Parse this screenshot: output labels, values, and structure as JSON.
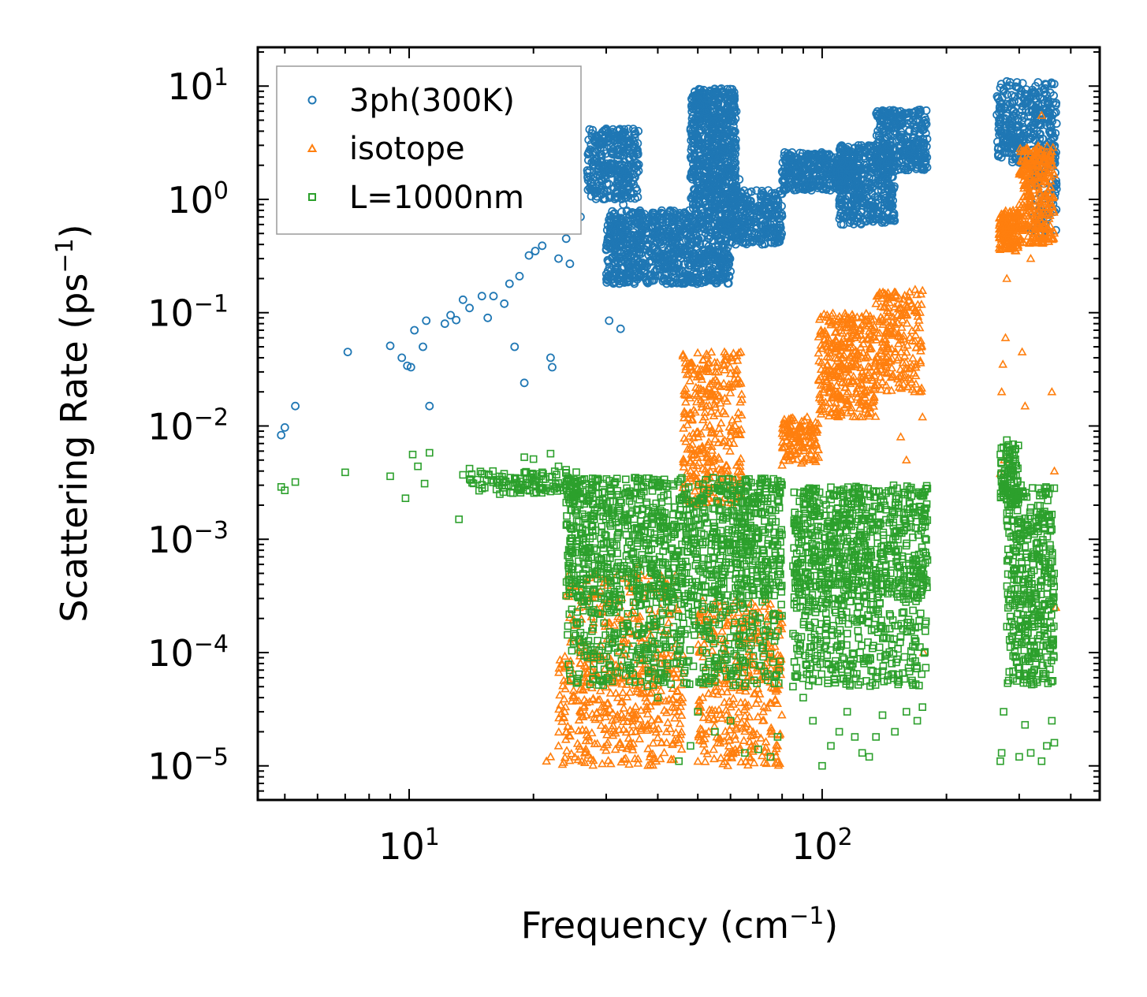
{
  "chart_data": {
    "type": "scatter",
    "xscale": "log",
    "yscale": "log",
    "xlim": [
      4.3,
      470
    ],
    "ylim": [
      5e-06,
      22
    ],
    "xlabel": {
      "text": "Frequency (cm",
      "sup": "−1",
      "close": ")"
    },
    "ylabel": {
      "text": "Scattering Rate (ps",
      "sup": "−1",
      "close": ")"
    },
    "xticks": [
      {
        "value": 10,
        "base": "10",
        "exp": "1"
      },
      {
        "value": 100,
        "base": "10",
        "exp": "2"
      }
    ],
    "yticks": [
      {
        "value": 10,
        "base": "10",
        "exp": "1"
      },
      {
        "value": 1,
        "base": "10",
        "exp": "0"
      },
      {
        "value": 0.1,
        "base": "10",
        "exp": "−1"
      },
      {
        "value": 0.01,
        "base": "10",
        "exp": "−2"
      },
      {
        "value": 0.001,
        "base": "10",
        "exp": "−3"
      },
      {
        "value": 0.0001,
        "base": "10",
        "exp": "−4"
      },
      {
        "value": 1e-05,
        "base": "10",
        "exp": "−5"
      }
    ],
    "legend_position": "top-left",
    "series": [
      {
        "name": "3ph(300K)",
        "marker": "circle",
        "color": "#1f77b4",
        "points": [
          [
            4.9,
            0.0083
          ],
          [
            5.0,
            0.0097
          ],
          [
            5.3,
            0.015
          ],
          [
            7.1,
            0.045
          ],
          [
            9.0,
            0.051
          ],
          [
            9.6,
            0.04
          ],
          [
            9.9,
            0.034
          ],
          [
            10.1,
            0.033
          ],
          [
            10.3,
            0.07
          ],
          [
            10.8,
            0.05
          ],
          [
            11.0,
            0.085
          ],
          [
            11.2,
            0.015
          ],
          [
            12.2,
            0.08
          ],
          [
            12.6,
            0.095
          ],
          [
            13.0,
            0.086
          ],
          [
            13.5,
            0.13
          ],
          [
            14.0,
            0.11
          ],
          [
            15.0,
            0.14
          ],
          [
            15.5,
            0.09
          ],
          [
            16.0,
            0.14
          ],
          [
            17.0,
            0.12
          ],
          [
            17.5,
            0.18
          ],
          [
            18.0,
            0.05
          ],
          [
            18.5,
            0.21
          ],
          [
            19.0,
            0.024
          ],
          [
            19.5,
            0.32
          ],
          [
            20.2,
            0.35
          ],
          [
            21.0,
            0.39
          ],
          [
            22.0,
            0.04
          ],
          [
            22.2,
            0.033
          ],
          [
            22.5,
            0.55
          ],
          [
            23.0,
            0.3
          ],
          [
            24.0,
            0.45
          ],
          [
            24.5,
            0.27
          ],
          [
            25.0,
            0.6
          ],
          [
            26.0,
            0.7
          ],
          [
            27,
            1.8
          ],
          [
            28,
            2.2
          ],
          [
            29,
            2.5
          ],
          [
            30,
            4.2
          ],
          [
            31,
            2.6
          ],
          [
            32,
            1.5
          ],
          [
            33,
            0.9
          ],
          [
            34,
            0.6
          ],
          [
            30.5,
            0.085
          ],
          [
            32.5,
            0.072
          ],
          [
            35,
            0.35
          ],
          [
            36,
            0.28
          ],
          [
            38,
            0.4
          ],
          [
            40,
            0.45
          ],
          [
            42,
            0.5
          ],
          [
            45,
            0.55
          ],
          [
            48,
            0.7
          ],
          [
            50,
            1.2
          ],
          [
            52,
            2.0
          ],
          [
            54,
            3.5
          ],
          [
            55,
            5.0
          ],
          [
            56,
            7.5
          ],
          [
            57,
            9.5
          ],
          [
            58,
            5.0
          ],
          [
            60,
            2.5
          ],
          [
            63,
            1.5
          ],
          [
            66,
            1.0
          ],
          [
            70,
            0.8
          ],
          [
            75,
            0.6
          ],
          [
            78,
            0.5
          ],
          [
            82,
            1.6
          ],
          [
            86,
            2.0
          ],
          [
            90,
            1.8
          ],
          [
            95,
            2.2
          ],
          [
            100,
            2.4
          ],
          [
            104,
            1.5
          ],
          [
            108,
            1.8
          ],
          [
            112,
            1.2
          ],
          [
            118,
            0.9
          ],
          [
            124,
            0.7
          ],
          [
            128,
            0.65
          ],
          [
            133,
            1.5
          ],
          [
            138,
            2.0
          ],
          [
            142,
            3.5
          ],
          [
            146,
            5.5
          ],
          [
            150,
            6.0
          ],
          [
            155,
            3.0
          ],
          [
            160,
            2.5
          ],
          [
            166,
            2.8
          ],
          [
            172,
            2.5
          ],
          [
            178,
            2.2
          ],
          [
            270,
            5.0
          ],
          [
            275,
            9.0
          ],
          [
            280,
            11.0
          ],
          [
            285,
            7.0
          ],
          [
            290,
            5.5
          ],
          [
            300,
            4.5
          ],
          [
            310,
            8.5
          ],
          [
            320,
            3.5
          ],
          [
            330,
            2.5
          ],
          [
            340,
            0.5
          ],
          [
            350,
            5.2
          ],
          [
            360,
            2.5
          ],
          [
            365,
            2.2
          ]
        ],
        "clusters": [
          [
            27,
            36,
            1.0,
            4.2,
            320
          ],
          [
            30,
            60,
            0.18,
            0.8,
            900
          ],
          [
            48,
            62,
            0.8,
            9.5,
            650
          ],
          [
            60,
            80,
            0.4,
            1.2,
            280
          ],
          [
            80,
            120,
            1.2,
            2.6,
            340
          ],
          [
            110,
            150,
            0.6,
            3.0,
            400
          ],
          [
            135,
            180,
            1.8,
            6.2,
            300
          ],
          [
            265,
            370,
            2.0,
            11.0,
            320
          ],
          [
            320,
            370,
            0.5,
            5.0,
            90
          ]
        ]
      },
      {
        "name": "isotope",
        "marker": "triangle",
        "color": "#ff7f0e",
        "points": [
          [
            21.5,
            1.1e-05
          ],
          [
            22,
            1.2e-05
          ],
          [
            23,
            1.5e-05
          ],
          [
            24,
            2e-05
          ],
          [
            25,
            4e-05
          ],
          [
            26,
            8e-05
          ],
          [
            28,
            0.0001
          ],
          [
            30,
            3e-05
          ],
          [
            32,
            4e-05
          ],
          [
            34,
            0.00012
          ],
          [
            36,
            0.0006
          ],
          [
            38,
            0.0004
          ],
          [
            40,
            0.0001
          ],
          [
            42,
            2e-05
          ],
          [
            44,
            3e-05
          ],
          [
            46,
            0.0025
          ],
          [
            48,
            0.004
          ],
          [
            50,
            0.006
          ],
          [
            52,
            0.012
          ],
          [
            54,
            0.02
          ],
          [
            56,
            0.03
          ],
          [
            58,
            0.045
          ],
          [
            60,
            0.04
          ],
          [
            62,
            0.0035
          ],
          [
            64,
            0.0002
          ],
          [
            66,
            5e-05
          ],
          [
            68,
            2e-05
          ],
          [
            72,
            3e-05
          ],
          [
            75,
            2e-05
          ],
          [
            78,
            1.5e-05
          ],
          [
            80,
            0.0045
          ],
          [
            84,
            0.006
          ],
          [
            88,
            0.009
          ],
          [
            92,
            0.012
          ],
          [
            96,
            0.005
          ],
          [
            100,
            0.015
          ],
          [
            105,
            0.03
          ],
          [
            110,
            0.05
          ],
          [
            115,
            0.08
          ],
          [
            120,
            0.06
          ],
          [
            125,
            0.03
          ],
          [
            130,
            0.08
          ],
          [
            135,
            0.12
          ],
          [
            140,
            0.05
          ],
          [
            145,
            0.1
          ],
          [
            150,
            0.045
          ],
          [
            155,
            0.008
          ],
          [
            160,
            0.005
          ],
          [
            165,
            0.12
          ],
          [
            168,
            0.16
          ],
          [
            170,
            0.1
          ],
          [
            172,
            0.02
          ],
          [
            175,
            0.012
          ],
          [
            176,
            0.0001
          ],
          [
            272,
            0.02
          ],
          [
            274,
            0.035
          ],
          [
            276,
            0.005
          ],
          [
            278,
            0.06
          ],
          [
            280,
            0.2
          ],
          [
            285,
            0.4
          ],
          [
            290,
            0.8
          ],
          [
            300,
            0.9
          ],
          [
            305,
            0.045
          ],
          [
            310,
            0.015
          ],
          [
            315,
            0.6
          ],
          [
            320,
            0.3
          ],
          [
            330,
            2.0
          ],
          [
            340,
            5.5
          ],
          [
            350,
            0.9
          ],
          [
            355,
            0.45
          ],
          [
            360,
            0.02
          ],
          [
            365,
            0.004
          ],
          [
            368,
            0.00025
          ],
          [
            270,
            0.0038
          ]
        ],
        "clusters": [
          [
            23,
            46,
            1e-05,
            0.0001,
            380
          ],
          [
            24,
            45,
            0.0001,
            0.0005,
            140
          ],
          [
            46,
            64,
            0.002,
            0.045,
            320
          ],
          [
            50,
            80,
            1e-05,
            0.0003,
            360
          ],
          [
            80,
            98,
            0.0045,
            0.012,
            130
          ],
          [
            98,
            135,
            0.012,
            0.1,
            340
          ],
          [
            135,
            175,
            0.02,
            0.16,
            200
          ],
          [
            268,
            300,
            0.35,
            0.8,
            150
          ],
          [
            300,
            365,
            0.4,
            3.0,
            300
          ]
        ]
      },
      {
        "name": "L=1000nm",
        "marker": "square",
        "color": "#2ca02c",
        "points": [
          [
            4.9,
            0.0029
          ],
          [
            5.0,
            0.0027
          ],
          [
            5.3,
            0.0032
          ],
          [
            7.0,
            0.0039
          ],
          [
            9.0,
            0.0036
          ],
          [
            9.8,
            0.0023
          ],
          [
            10.2,
            0.0056
          ],
          [
            10.5,
            0.0044
          ],
          [
            10.9,
            0.0031
          ],
          [
            11.2,
            0.0058
          ],
          [
            13.2,
            0.0015
          ],
          [
            13.5,
            0.0037
          ],
          [
            14.0,
            0.0042
          ],
          [
            15,
            0.0038
          ],
          [
            16,
            0.0033
          ],
          [
            17,
            0.0032
          ],
          [
            18,
            0.0034
          ],
          [
            19,
            0.0053
          ],
          [
            20,
            0.0051
          ],
          [
            21,
            0.0039
          ],
          [
            22,
            0.0057
          ],
          [
            23,
            0.0044
          ],
          [
            24,
            0.0041
          ],
          [
            25,
            0.00012
          ],
          [
            26,
            0.00015
          ],
          [
            28,
            7e-05
          ],
          [
            30,
            9.25e-05
          ],
          [
            32,
            0.0001
          ],
          [
            35,
            8e-05
          ],
          [
            38,
            6e-05
          ],
          [
            40,
            4e-05
          ],
          [
            45,
            1.1e-05
          ],
          [
            48,
            1.5e-05
          ],
          [
            50,
            3e-05
          ],
          [
            55,
            2e-05
          ],
          [
            60,
            2.5e-05
          ],
          [
            65,
            1.3e-05
          ],
          [
            70,
            1.4e-05
          ],
          [
            75,
            1.2e-05
          ],
          [
            78,
            1.8e-05
          ],
          [
            85,
            5e-05
          ],
          [
            90,
            4e-05
          ],
          [
            95,
            2.5e-05
          ],
          [
            100,
            1e-05
          ],
          [
            105,
            1.5e-05
          ],
          [
            110,
            2e-05
          ],
          [
            115,
            3e-05
          ],
          [
            120,
            1.8e-05
          ],
          [
            125,
            1.3e-05
          ],
          [
            130,
            1.2e-05
          ],
          [
            135,
            1.8e-05
          ],
          [
            140,
            2.8e-05
          ],
          [
            150,
            2e-05
          ],
          [
            160,
            3e-05
          ],
          [
            170,
            2.5e-05
          ],
          [
            175,
            3.3e-05
          ],
          [
            270,
            1.1e-05
          ],
          [
            272,
            1.3e-05
          ],
          [
            275,
            3e-05
          ],
          [
            280,
            0.0075
          ],
          [
            285,
            0.006
          ],
          [
            290,
            0.004
          ],
          [
            300,
            1.2e-05
          ],
          [
            310,
            2.3e-05
          ],
          [
            320,
            1.3e-05
          ],
          [
            340,
            1.1e-05
          ],
          [
            350,
            1.5e-05
          ],
          [
            360,
            2.5e-05
          ],
          [
            365,
            1.6e-05
          ]
        ],
        "clusters": [
          [
            14,
            26,
            0.0025,
            0.004,
            120
          ],
          [
            24,
            80,
            0.0003,
            0.0035,
            1100
          ],
          [
            24,
            80,
            5e-05,
            0.0003,
            420
          ],
          [
            85,
            180,
            0.0003,
            0.003,
            700
          ],
          [
            85,
            180,
            5e-05,
            0.0003,
            300
          ],
          [
            270,
            300,
            0.002,
            0.007,
            90
          ],
          [
            280,
            365,
            5e-05,
            0.003,
            420
          ]
        ]
      }
    ]
  }
}
